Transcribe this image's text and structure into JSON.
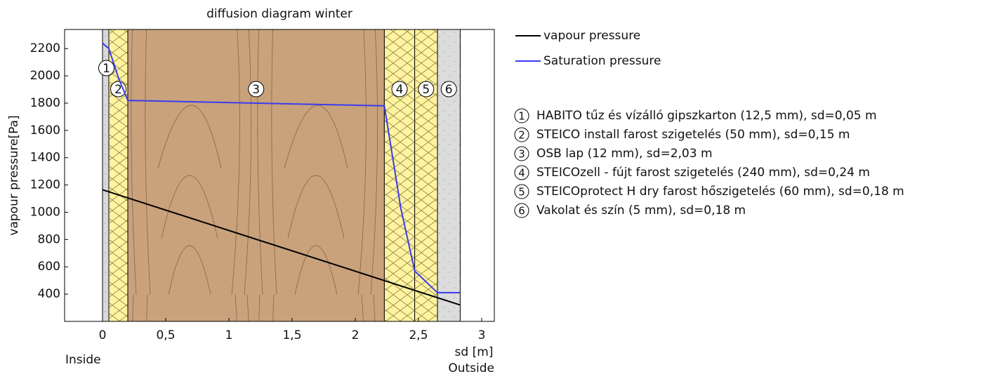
{
  "chart_data": {
    "type": "line",
    "title": "diffusion diagram winter",
    "ylabel": "vapour pressure[Pa]",
    "xlabel": "sd [m]",
    "annotations": {
      "inside": "Inside",
      "outside": "Outside"
    },
    "xlim": [
      -0.3,
      3.1
    ],
    "ylim": [
      200,
      2340
    ],
    "xticks": [
      0,
      {
        "value": 0.5,
        "label": "0,5"
      },
      1,
      {
        "value": 1.5,
        "label": "1,5"
      },
      2,
      {
        "value": 2.5,
        "label": "2,5"
      },
      3
    ],
    "yticks": [
      400,
      600,
      800,
      1000,
      1200,
      1400,
      1600,
      1800,
      2000,
      2200
    ],
    "layers": [
      {
        "number": "1",
        "label": "HABITO tűz és vízálló gipszkarton (12,5 mm), sd=0,05 m",
        "sd": 0.05,
        "color": "#d9d9d9",
        "pattern": "plaster"
      },
      {
        "number": "2",
        "label": "STEICO install farost szigetelés (50 mm), sd=0,15 m",
        "sd": 0.15,
        "color": "#fff3a0",
        "pattern": "insulation"
      },
      {
        "number": "3",
        "label": "OSB lap (12 mm), sd=2,03 m",
        "sd": 2.03,
        "color": "#c9a27c",
        "pattern": "wood"
      },
      {
        "number": "4",
        "label": "STEICOzell - fújt farost szigetelés (240 mm), sd=0,24 m",
        "sd": 0.24,
        "color": "#fff3a0",
        "pattern": "insulation"
      },
      {
        "number": "5",
        "label": "STEICOprotect H dry farost hőszigetelés (60 mm), sd=0,18 m",
        "sd": 0.18,
        "color": "#fff3a0",
        "pattern": "insulation"
      },
      {
        "number": "6",
        "label": "Vakolat és szín (5 mm), sd=0,18 m",
        "sd": 0.18,
        "color": "#dcdcdc",
        "pattern": "plaster"
      }
    ],
    "series": [
      {
        "name": "vapour pressure",
        "color": "#000000",
        "x": [
          0,
          2.83
        ],
        "values": [
          1165,
          320
        ]
      },
      {
        "name": "Saturation pressure",
        "color": "#3b3bef",
        "x": [
          0,
          0.05,
          0.13,
          0.2,
          2.23,
          2.36,
          2.47,
          2.65,
          2.83
        ],
        "values": [
          2240,
          2200,
          1975,
          1820,
          1780,
          1030,
          570,
          410,
          410
        ]
      }
    ]
  }
}
